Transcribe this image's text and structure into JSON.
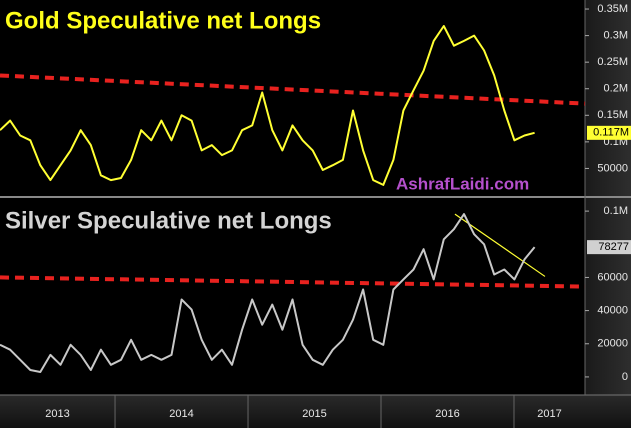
{
  "chart_data": [
    {
      "type": "line",
      "title": "Gold Speculative net Longs",
      "title_color": "#ffff1a",
      "xlim": [
        2013.135,
        2017.534
      ],
      "ylim": [
        0,
        367000
      ],
      "yticks": [
        50000,
        {
          "value": 100000,
          "label": "0.1M"
        },
        {
          "value": 150000,
          "label": "0.15M"
        },
        {
          "value": 200000,
          "label": "0.2M"
        },
        {
          "value": 250000,
          "label": "0.25M"
        },
        {
          "value": 300000,
          "label": "0.3M"
        },
        {
          "value": 350000,
          "label": "0.35M"
        }
      ],
      "series": [
        {
          "color": "#ffff33",
          "values": [
            122000,
            140000,
            112000,
            103000,
            56000,
            28000,
            56000,
            84000,
            122000,
            94000,
            37000,
            28000,
            32000,
            66000,
            122000,
            103000,
            140000,
            103000,
            150000,
            140000,
            84000,
            94000,
            75000,
            84000,
            122000,
            131000,
            193000,
            122000,
            84000,
            131000,
            103000,
            84000,
            47000,
            56000,
            66000,
            159000,
            84000,
            28000,
            19000,
            66000,
            159000,
            197000,
            234000,
            290000,
            318000,
            281000,
            290000,
            300000,
            272000,
            225000,
            159000,
            103000,
            112000,
            117000,
            null,
            null,
            null,
            null,
            null
          ]
        }
      ],
      "last_value": {
        "value": 117000,
        "label": "0.117M",
        "color": "#ffff33"
      },
      "trendlines": [
        {
          "color": "#e8221f",
          "dashed": true,
          "x": [
            2013.135,
            2017.534
          ],
          "values": [
            225000,
            172000
          ]
        }
      ],
      "annotation": "AshrafLaidi.com"
    },
    {
      "type": "line",
      "title": "Silver Speculative net Longs",
      "title_color": "#d4d4d4",
      "xlim": [
        2013.135,
        2017.534
      ],
      "ylim": [
        -10900,
        106700
      ],
      "yticks": [
        0,
        20000,
        40000,
        60000,
        {
          "value": 100000,
          "label": "0.1M"
        }
      ],
      "xticks": [
        2013,
        2014,
        2015,
        2016,
        2017
      ],
      "series": [
        {
          "color": "#c8c8c8",
          "values": [
            19400,
            16400,
            10300,
            4200,
            3000,
            13300,
            7300,
            19400,
            13300,
            4200,
            16400,
            7300,
            10300,
            22400,
            10300,
            13300,
            10300,
            13300,
            46700,
            40600,
            22400,
            10300,
            16400,
            7300,
            28500,
            46700,
            31500,
            43600,
            28500,
            46700,
            19400,
            10300,
            7300,
            16400,
            22400,
            34500,
            52700,
            22400,
            19400,
            52700,
            58800,
            64800,
            77000,
            58800,
            83000,
            89100,
            98200,
            86100,
            80000,
            61800,
            64800,
            58800,
            70900,
            78277,
            null,
            null,
            null,
            null,
            null
          ]
        }
      ],
      "last_value": {
        "value": 78277,
        "label": "78277",
        "color": "#d0d0d0"
      },
      "trendlines": [
        {
          "color": "#e8221f",
          "dashed": true,
          "x": [
            2013.135,
            2017.534
          ],
          "values": [
            60000,
            54500
          ]
        },
        {
          "color": "#ffff33",
          "dashed": false,
          "x": [
            2016.556,
            2017.233
          ],
          "values": [
            98200,
            60600
          ]
        }
      ]
    }
  ]
}
